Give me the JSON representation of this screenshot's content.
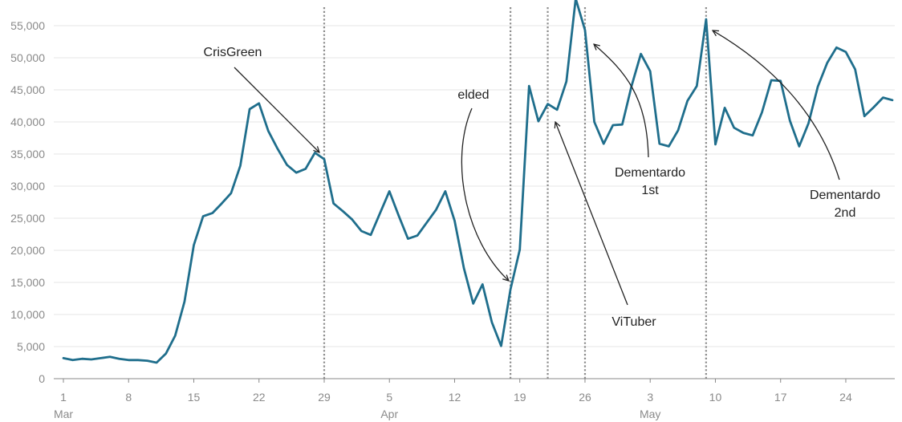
{
  "chart_data": {
    "type": "line",
    "title": "",
    "xlabel": "",
    "ylabel": "",
    "x_range": [
      "2020-03-01",
      "2020-05-29"
    ],
    "ylim": [
      0,
      58000
    ],
    "y_ticks": [
      0,
      5000,
      10000,
      15000,
      20000,
      25000,
      30000,
      35000,
      40000,
      45000,
      50000,
      55000
    ],
    "y_tick_labels": [
      "0",
      "5,000",
      "10,000",
      "15,000",
      "20,000",
      "25,000",
      "30,000",
      "35,000",
      "40,000",
      "45,000",
      "50,000",
      "55,000"
    ],
    "x_ticks": [
      {
        "date": "2020-03-01",
        "label": "1",
        "month": "Mar"
      },
      {
        "date": "2020-03-08",
        "label": "8",
        "month": ""
      },
      {
        "date": "2020-03-15",
        "label": "15",
        "month": ""
      },
      {
        "date": "2020-03-22",
        "label": "22",
        "month": ""
      },
      {
        "date": "2020-03-29",
        "label": "29",
        "month": ""
      },
      {
        "date": "2020-04-05",
        "label": "5",
        "month": "Apr"
      },
      {
        "date": "2020-04-12",
        "label": "12",
        "month": ""
      },
      {
        "date": "2020-04-19",
        "label": "19",
        "month": ""
      },
      {
        "date": "2020-04-26",
        "label": "26",
        "month": ""
      },
      {
        "date": "2020-05-03",
        "label": "3",
        "month": "May"
      },
      {
        "date": "2020-05-10",
        "label": "10",
        "month": ""
      },
      {
        "date": "2020-05-17",
        "label": "17",
        "month": ""
      },
      {
        "date": "2020-05-24",
        "label": "24",
        "month": ""
      }
    ],
    "grid": true,
    "line_color": "#1f6e8c",
    "series": [
      {
        "x": [
          "2020-03-01",
          "2020-03-02",
          "2020-03-03",
          "2020-03-04",
          "2020-03-05",
          "2020-03-06",
          "2020-03-07",
          "2020-03-08",
          "2020-03-09",
          "2020-03-10",
          "2020-03-11",
          "2020-03-12",
          "2020-03-13",
          "2020-03-14",
          "2020-03-15",
          "2020-03-16",
          "2020-03-17",
          "2020-03-18",
          "2020-03-19",
          "2020-03-20",
          "2020-03-21",
          "2020-03-22",
          "2020-03-23",
          "2020-03-24",
          "2020-03-25",
          "2020-03-26",
          "2020-03-27",
          "2020-03-28",
          "2020-03-29",
          "2020-03-30",
          "2020-03-31",
          "2020-04-01",
          "2020-04-02",
          "2020-04-03",
          "2020-04-04",
          "2020-04-05",
          "2020-04-06",
          "2020-04-07",
          "2020-04-08",
          "2020-04-09",
          "2020-04-10",
          "2020-04-11",
          "2020-04-12",
          "2020-04-13",
          "2020-04-14",
          "2020-04-15",
          "2020-04-16",
          "2020-04-17",
          "2020-04-18",
          "2020-04-19",
          "2020-04-20",
          "2020-04-21",
          "2020-04-22",
          "2020-04-23",
          "2020-04-24",
          "2020-04-25",
          "2020-04-26",
          "2020-04-27",
          "2020-04-28",
          "2020-04-29",
          "2020-04-30",
          "2020-05-01",
          "2020-05-02",
          "2020-05-03",
          "2020-05-04",
          "2020-05-05",
          "2020-05-06",
          "2020-05-07",
          "2020-05-08",
          "2020-05-09",
          "2020-05-10",
          "2020-05-11",
          "2020-05-12",
          "2020-05-13",
          "2020-05-14",
          "2020-05-15",
          "2020-05-16",
          "2020-05-17",
          "2020-05-18",
          "2020-05-19",
          "2020-05-20",
          "2020-05-21",
          "2020-05-22",
          "2020-05-23",
          "2020-05-24",
          "2020-05-25",
          "2020-05-26",
          "2020-05-27",
          "2020-05-28",
          "2020-05-29"
        ],
        "y": [
          3200,
          2900,
          3100,
          3000,
          3200,
          3400,
          3100,
          2900,
          2900,
          2800,
          2500,
          3900,
          6700,
          12000,
          20800,
          25300,
          25800,
          27300,
          28900,
          33200,
          42000,
          42900,
          38600,
          35800,
          33300,
          32100,
          32700,
          35200,
          34200,
          27300,
          26100,
          24800,
          23000,
          22400,
          25800,
          29200,
          25400,
          21800,
          22300,
          24300,
          26300,
          29200,
          24600,
          17200,
          11700,
          14700,
          8800,
          5100,
          13900,
          20100,
          45600,
          40100,
          42800,
          41900,
          46300,
          59200,
          54300,
          40000,
          36600,
          39500,
          39600,
          45600,
          50600,
          47900,
          36600,
          36200,
          38700,
          43300,
          45600,
          56000,
          36500,
          42200,
          39100,
          38300,
          37900,
          41500,
          46500,
          46400,
          40200,
          36200,
          39800,
          45500,
          49200,
          51600,
          50900,
          48200,
          40900,
          42300,
          43800,
          43400
        ]
      }
    ],
    "events": [
      {
        "date": "2020-03-29"
      },
      {
        "date": "2020-04-18"
      },
      {
        "date": "2020-04-22"
      },
      {
        "date": "2020-04-26"
      },
      {
        "date": "2020-05-09"
      }
    ],
    "annotations": [
      {
        "text": [
          "CrisGreen"
        ]
      },
      {
        "text": [
          "elded"
        ]
      },
      {
        "text": [
          "ViTuber"
        ]
      },
      {
        "text": [
          "Dementardo",
          "1st"
        ]
      },
      {
        "text": [
          "Dementardo",
          "2nd"
        ]
      }
    ]
  }
}
